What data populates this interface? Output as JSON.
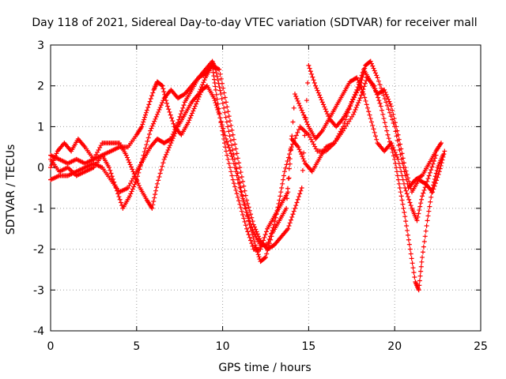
{
  "chart_data": {
    "type": "scatter",
    "title": "Day 118 of 2021, Sidereal Day-to-day VTEC variation (SDTVAR) for receiver mall",
    "xlabel": "GPS time / hours",
    "ylabel": "SDTVAR / TECUs",
    "xlim": [
      0,
      25
    ],
    "ylim": [
      -4,
      3
    ],
    "xticks": [
      "0",
      "5",
      "10",
      "15",
      "20",
      "25"
    ],
    "yticks": [
      "-4",
      "-3",
      "-2",
      "-1",
      "0",
      "1",
      "2",
      "3"
    ],
    "grid": true,
    "marker": "+",
    "color": "#ff0000",
    "series": [
      {
        "points": [
          [
            0,
            0.3
          ],
          [
            0.5,
            0.2
          ],
          [
            1,
            0.1
          ],
          [
            1.5,
            0.2
          ],
          [
            2,
            0.1
          ],
          [
            2.5,
            0.2
          ],
          [
            3,
            0.3
          ],
          [
            3.5,
            0.4
          ],
          [
            4,
            0.5
          ],
          [
            4.5,
            0.5
          ],
          [
            5,
            0.8
          ],
          [
            5.3,
            1.0
          ],
          [
            5.6,
            1.4
          ],
          [
            6,
            1.9
          ],
          [
            6.2,
            2.1
          ],
          [
            6.5,
            2.0
          ],
          [
            6.8,
            1.5
          ],
          [
            7.2,
            1.0
          ],
          [
            7.6,
            0.8
          ],
          [
            8,
            1.1
          ],
          [
            8.4,
            1.5
          ],
          [
            8.8,
            1.9
          ],
          [
            9.1,
            2.0
          ],
          [
            9.5,
            1.7
          ],
          [
            9.8,
            1.3
          ],
          [
            10.2,
            0.7
          ],
          [
            10.6,
            0.2
          ],
          [
            11,
            -0.5
          ],
          [
            11.4,
            -1.1
          ],
          [
            11.8,
            -1.6
          ],
          [
            12.2,
            -1.9
          ],
          [
            12.6,
            -1.9
          ],
          [
            13,
            -1.4
          ],
          [
            13.3,
            -0.8
          ],
          [
            13.6,
            -0.1
          ],
          [
            14,
            0.5
          ],
          [
            14.5,
            1.0
          ],
          [
            15,
            0.8
          ],
          [
            15.5,
            0.4
          ],
          [
            16,
            0.4
          ],
          [
            16.5,
            0.6
          ],
          [
            17,
            1.0
          ],
          [
            17.5,
            1.6
          ],
          [
            18,
            2.0
          ],
          [
            18.3,
            2.5
          ],
          [
            18.6,
            2.6
          ],
          [
            19,
            2.2
          ],
          [
            19.5,
            1.6
          ],
          [
            20,
            1.0
          ],
          [
            20.4,
            0.2
          ],
          [
            20.8,
            -0.5
          ],
          [
            21.2,
            -0.3
          ],
          [
            21.6,
            -0.2
          ],
          [
            22,
            0.1
          ],
          [
            22.4,
            0.4
          ],
          [
            22.7,
            0.6
          ]
        ]
      },
      {
        "points": [
          [
            0,
            -0.3
          ],
          [
            0.5,
            -0.2
          ],
          [
            1,
            -0.2
          ],
          [
            1.5,
            -0.1
          ],
          [
            2,
            0.0
          ],
          [
            2.5,
            0.1
          ],
          [
            3,
            0.0
          ],
          [
            3.5,
            -0.3
          ],
          [
            4,
            -0.6
          ],
          [
            4.5,
            -0.5
          ],
          [
            5,
            -0.1
          ],
          [
            5.4,
            0.2
          ],
          [
            5.8,
            0.5
          ],
          [
            6.2,
            0.7
          ],
          [
            6.6,
            0.6
          ],
          [
            7,
            0.7
          ],
          [
            7.4,
            1.1
          ],
          [
            7.8,
            1.6
          ],
          [
            8.2,
            1.9
          ],
          [
            8.6,
            2.2
          ],
          [
            9,
            2.4
          ],
          [
            9.4,
            2.6
          ],
          [
            9.6,
            2.4
          ],
          [
            9.9,
            1.8
          ],
          [
            10.3,
            1.0
          ],
          [
            10.7,
            0.2
          ],
          [
            11.1,
            -0.6
          ],
          [
            11.5,
            -1.3
          ],
          [
            11.9,
            -1.9
          ],
          [
            12.2,
            -2.3
          ],
          [
            12.5,
            -2.2
          ],
          [
            12.9,
            -1.6
          ],
          [
            13.3,
            -1.3
          ],
          [
            13.7,
            -1.0
          ],
          [
            14,
            0.7
          ],
          [
            14.4,
            0.5
          ],
          [
            14.8,
            0.1
          ],
          [
            15.2,
            -0.1
          ],
          [
            15.6,
            0.2
          ],
          [
            16,
            0.5
          ],
          [
            16.5,
            0.6
          ],
          [
            17,
            0.9
          ],
          [
            17.6,
            1.3
          ],
          [
            18,
            1.7
          ],
          [
            18.4,
            2.2
          ],
          [
            18.8,
            2.0
          ],
          [
            19.2,
            1.5
          ],
          [
            19.6,
            0.8
          ],
          [
            20,
            0.2
          ],
          [
            20.3,
            -0.5
          ],
          [
            20.6,
            -1.2
          ],
          [
            20.9,
            -2.0
          ],
          [
            21.2,
            -2.8
          ],
          [
            21.4,
            -3.0
          ],
          [
            21.6,
            -2.2
          ],
          [
            21.9,
            -1.3
          ],
          [
            22.2,
            -0.5
          ],
          [
            22.5,
            0.0
          ],
          [
            22.8,
            0.3
          ]
        ]
      },
      {
        "points": [
          [
            0,
            0.0
          ],
          [
            0.4,
            0.4
          ],
          [
            0.8,
            0.6
          ],
          [
            1.2,
            0.4
          ],
          [
            1.6,
            0.7
          ],
          [
            2,
            0.5
          ],
          [
            2.5,
            0.2
          ],
          [
            3,
            0.6
          ],
          [
            3.5,
            0.6
          ],
          [
            4,
            0.6
          ],
          [
            4.4,
            0.3
          ],
          [
            4.8,
            -0.1
          ],
          [
            5.2,
            -0.5
          ],
          [
            5.6,
            -0.8
          ],
          [
            5.9,
            -1.0
          ],
          [
            6.2,
            -0.4
          ],
          [
            6.6,
            0.2
          ],
          [
            7,
            0.6
          ],
          [
            7.4,
            1.0
          ],
          [
            7.8,
            1.3
          ],
          [
            8.2,
            1.6
          ],
          [
            8.6,
            1.8
          ],
          [
            9,
            2.2
          ],
          [
            9.4,
            2.5
          ],
          [
            9.6,
            1.9
          ],
          [
            9.9,
            1.1
          ],
          [
            10.2,
            0.4
          ],
          [
            10.6,
            -0.3
          ],
          [
            11,
            -0.9
          ],
          [
            11.4,
            -1.5
          ],
          [
            11.8,
            -2.0
          ],
          [
            12.2,
            -2.0
          ],
          [
            12.6,
            -1.5
          ],
          [
            13,
            -1.2
          ],
          [
            13.4,
            -0.9
          ],
          [
            13.8,
            -0.6
          ],
          [
            14.2,
            1.8
          ],
          [
            14.6,
            1.4
          ],
          [
            15,
            1.0
          ],
          [
            15.4,
            0.7
          ],
          [
            15.8,
            0.9
          ],
          [
            16.2,
            1.2
          ],
          [
            16.6,
            1.5
          ],
          [
            17,
            1.8
          ],
          [
            17.4,
            2.1
          ],
          [
            17.8,
            2.2
          ],
          [
            18.2,
            1.8
          ],
          [
            18.6,
            1.2
          ],
          [
            19,
            0.6
          ],
          [
            19.4,
            0.4
          ],
          [
            19.8,
            0.6
          ],
          [
            20.2,
            0.2
          ],
          [
            20.6,
            -0.5
          ],
          [
            21,
            -1.0
          ],
          [
            21.3,
            -1.3
          ],
          [
            21.6,
            -0.7
          ],
          [
            22,
            -0.2
          ],
          [
            22.4,
            0.3
          ]
        ]
      },
      {
        "points": [
          [
            0,
            0.2
          ],
          [
            0.5,
            -0.1
          ],
          [
            1,
            0.0
          ],
          [
            1.5,
            -0.2
          ],
          [
            2,
            -0.1
          ],
          [
            2.5,
            0.0
          ],
          [
            3,
            0.3
          ],
          [
            3.4,
            0.0
          ],
          [
            3.8,
            -0.5
          ],
          [
            4.2,
            -1.0
          ],
          [
            4.6,
            -0.7
          ],
          [
            5,
            -0.3
          ],
          [
            5.4,
            0.3
          ],
          [
            5.8,
            0.9
          ],
          [
            6.2,
            1.3
          ],
          [
            6.6,
            1.7
          ],
          [
            7,
            1.9
          ],
          [
            7.4,
            1.7
          ],
          [
            7.8,
            1.8
          ],
          [
            8.2,
            2.0
          ],
          [
            8.6,
            2.2
          ],
          [
            9,
            2.3
          ],
          [
            9.4,
            2.5
          ],
          [
            9.8,
            2.4
          ],
          [
            10.2,
            1.6
          ],
          [
            10.6,
            0.8
          ],
          [
            11,
            0.0
          ],
          [
            11.4,
            -0.8
          ],
          [
            11.8,
            -1.4
          ],
          [
            12.2,
            -1.8
          ],
          [
            12.6,
            -2.0
          ],
          [
            13,
            -1.9
          ],
          [
            13.4,
            -1.7
          ],
          [
            13.8,
            -1.5
          ],
          [
            14.2,
            -1.0
          ],
          [
            14.6,
            -0.5
          ],
          [
            15,
            2.5
          ],
          [
            15.4,
            2.0
          ],
          [
            15.8,
            1.6
          ],
          [
            16.2,
            1.2
          ],
          [
            16.6,
            1.0
          ],
          [
            17,
            1.2
          ],
          [
            17.4,
            1.5
          ],
          [
            17.8,
            1.9
          ],
          [
            18.2,
            2.4
          ],
          [
            18.6,
            2.1
          ],
          [
            19,
            1.8
          ],
          [
            19.4,
            1.9
          ],
          [
            19.8,
            1.5
          ],
          [
            20.2,
            0.8
          ],
          [
            20.6,
            0.0
          ],
          [
            21,
            -0.6
          ],
          [
            21.4,
            -0.3
          ],
          [
            21.8,
            -0.4
          ],
          [
            22.2,
            -0.6
          ],
          [
            22.6,
            -0.1
          ],
          [
            22.9,
            0.4
          ]
        ]
      }
    ]
  }
}
